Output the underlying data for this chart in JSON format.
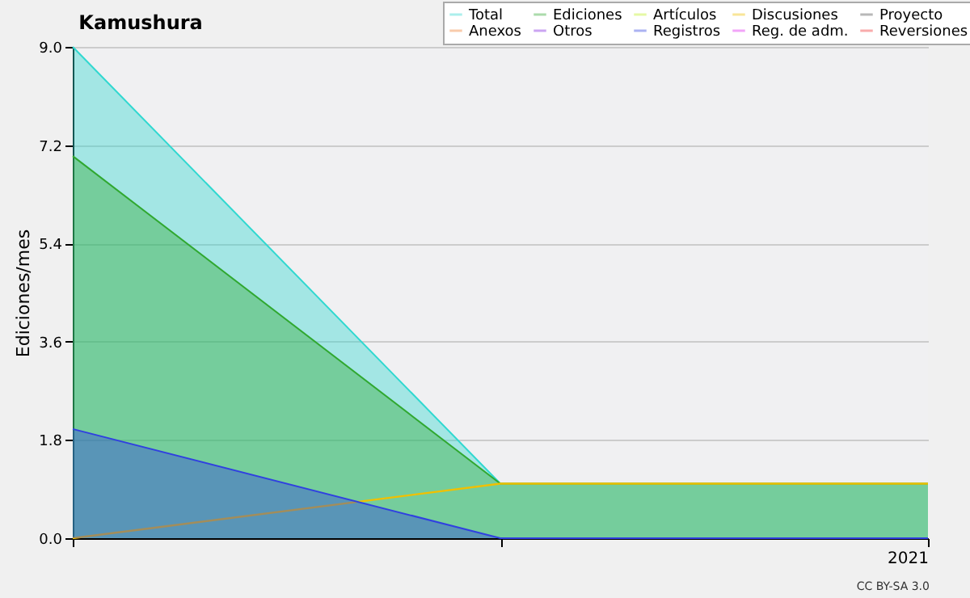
{
  "chart_data": {
    "type": "area",
    "title": "Kamushura",
    "ylabel": "Ediciones/mes",
    "categories": [
      null,
      null,
      "2021"
    ],
    "series": [
      {
        "name": "Total",
        "color": "#30d8d0",
        "values": [
          9.0,
          1.0,
          1.0
        ]
      },
      {
        "name": "Ediciones",
        "color": "#30a830",
        "values": [
          7.0,
          1.0,
          1.0
        ]
      },
      {
        "name": "Artículos",
        "color": "#c0f020",
        "type": "line",
        "values": [
          null,
          null,
          null
        ]
      },
      {
        "name": "Discusiones",
        "color": "#f0c000",
        "type": "line",
        "values": [
          0.0,
          1.0,
          1.0
        ]
      },
      {
        "name": "Proyecto",
        "color": "#505050",
        "type": "line",
        "values": [
          null,
          null,
          null
        ]
      },
      {
        "name": "Anexos",
        "color": "#f08030",
        "type": "line",
        "values": [
          null,
          null,
          null
        ]
      },
      {
        "name": "Otros",
        "color": "#8020e0",
        "type": "line",
        "values": [
          null,
          null,
          null
        ]
      },
      {
        "name": "Registros",
        "color": "#3040e0",
        "values": [
          2.0,
          0.0,
          0.0
        ]
      },
      {
        "name": "Reg. de adm.",
        "color": "#e020f0",
        "type": "line",
        "values": [
          null,
          null,
          null
        ]
      },
      {
        "name": "Reversiones",
        "color": "#f03030",
        "type": "line",
        "values": [
          null,
          null,
          null
        ]
      }
    ],
    "ylim": [
      0,
      9.0
    ],
    "yticks": [
      {
        "value": 0,
        "label": "0.0"
      },
      1.8,
      3.6,
      5.4,
      7.2,
      {
        "value": 9,
        "label": "9.0"
      }
    ],
    "grid": "y",
    "legend": "top right",
    "annotations": [
      "CC BY-SA 3.0"
    ]
  }
}
